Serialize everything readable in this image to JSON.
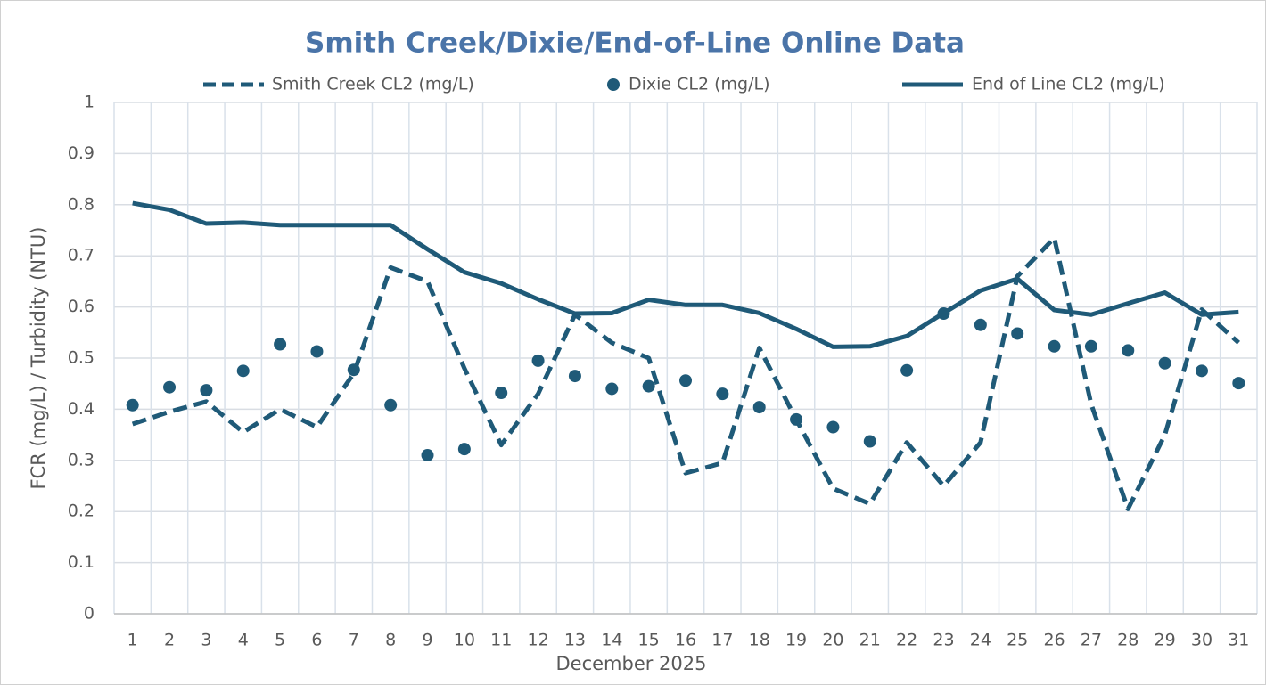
{
  "chart_data": {
    "type": "line",
    "title": "Smith Creek/Dixie/End-of-Line Online Data",
    "x_label": "December 2025",
    "y_label": "FCR (mg/L) / Turbidity (NTU)",
    "categories": [
      1,
      2,
      3,
      4,
      5,
      6,
      7,
      8,
      9,
      10,
      11,
      12,
      13,
      14,
      15,
      16,
      17,
      18,
      19,
      20,
      21,
      22,
      23,
      24,
      25,
      26,
      27,
      28,
      29,
      30,
      31
    ],
    "ylim": [
      0,
      1
    ],
    "yticks": [
      0,
      0.1,
      0.2,
      0.3,
      0.4,
      0.5,
      0.6,
      0.7,
      0.8,
      0.9,
      1
    ],
    "grid": true,
    "legend": "top",
    "series": [
      {
        "name": "Smith Creek CL2 (mg/L)",
        "color": "#1f5a78",
        "style": "dashed",
        "values": [
          0.371,
          0.395,
          0.415,
          0.355,
          0.4,
          0.365,
          0.47,
          0.677,
          0.65,
          0.48,
          0.33,
          0.43,
          0.585,
          0.53,
          0.5,
          0.275,
          0.295,
          0.52,
          0.38,
          0.245,
          0.215,
          0.335,
          0.25,
          0.335,
          0.66,
          0.735,
          0.41,
          0.205,
          0.35,
          0.595,
          0.53
        ]
      },
      {
        "name": "Dixie CL2 (mg/L)",
        "color": "#1f5a78",
        "style": "markers",
        "values": [
          0.408,
          0.443,
          0.437,
          0.475,
          0.527,
          0.513,
          0.477,
          0.408,
          0.31,
          0.322,
          0.432,
          0.495,
          0.465,
          0.44,
          0.445,
          0.456,
          0.43,
          0.404,
          0.38,
          0.365,
          0.337,
          0.476,
          0.587,
          0.565,
          0.548,
          0.523,
          0.523,
          0.515,
          0.49,
          0.475,
          0.451
        ]
      },
      {
        "name": "End of Line CL2 (mg/L)",
        "color": "#1f5a78",
        "style": "solid",
        "values": [
          0.803,
          0.79,
          0.763,
          0.765,
          0.76,
          0.76,
          0.76,
          0.76,
          0.713,
          0.668,
          0.646,
          0.615,
          0.587,
          0.588,
          0.614,
          0.604,
          0.604,
          0.588,
          0.557,
          0.522,
          0.523,
          0.543,
          0.588,
          0.632,
          0.655,
          0.594,
          0.585,
          0.607,
          0.628,
          0.585,
          0.59
        ]
      }
    ]
  }
}
